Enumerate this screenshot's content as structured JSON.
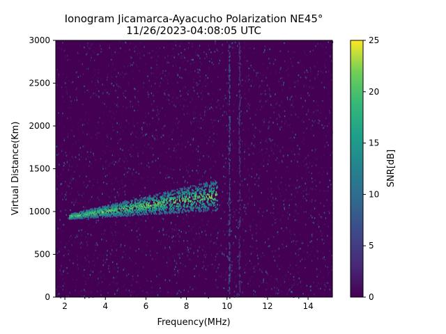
{
  "chart_data": {
    "type": "heatmap",
    "title_line1": "Ionogram Jicamarca-Ayacucho Polarization NE45°",
    "title_line2": "11/26/2023-04:08:05 UTC",
    "xlabel": "Frequency(MHz)",
    "ylabel": "Virtual Distance(Km)",
    "xlim": [
      1.55,
      15.2
    ],
    "ylim": [
      0,
      3000
    ],
    "xticks": [
      2,
      4,
      6,
      8,
      10,
      12,
      14
    ],
    "yticks": [
      0,
      500,
      1000,
      1500,
      2000,
      2500,
      3000
    ],
    "colorbar": {
      "label": "SNR[dB]",
      "min": 0,
      "max": 25,
      "ticks": [
        0,
        5,
        10,
        15,
        20,
        25
      ],
      "colormap": "viridis"
    },
    "background_snr_db": 1,
    "features": [
      {
        "name": "F-layer trace",
        "f_start_mhz": 2.2,
        "f_end_mhz": 9.5,
        "h_start_km": 950,
        "h_end_km": 1200,
        "peak_snr_db": 24
      },
      {
        "name": "Vertical interference line",
        "f_mhz": 10.1,
        "h_range_km": [
          0,
          3000
        ],
        "snr_db": 8
      },
      {
        "name": "Vertical interference line",
        "f_mhz": 10.6,
        "h_range_km": [
          0,
          3000
        ],
        "snr_db": 5
      }
    ]
  }
}
